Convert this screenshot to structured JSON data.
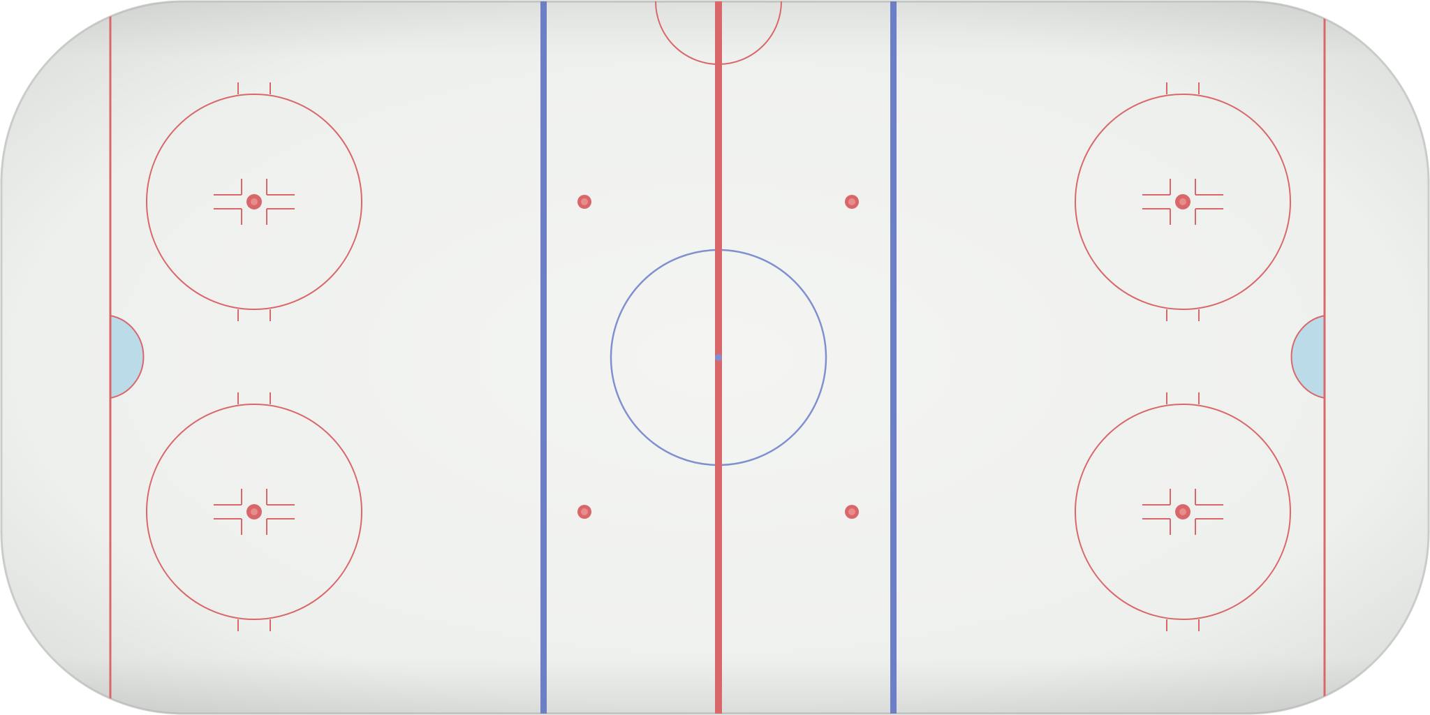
{
  "rink": {
    "colors": {
      "ice": "#eef0ee",
      "ice_edge": "#d9dcd9",
      "red_line": "#d9676a",
      "blue_line": "#6d7fc4",
      "center_circle": "#7f8fd0",
      "crease_fill": "#bcdbe9",
      "dot": "#d9676a"
    },
    "icons": {
      "faceoff_dot": "red-dot",
      "hash_marks": "hash-marks"
    }
  }
}
